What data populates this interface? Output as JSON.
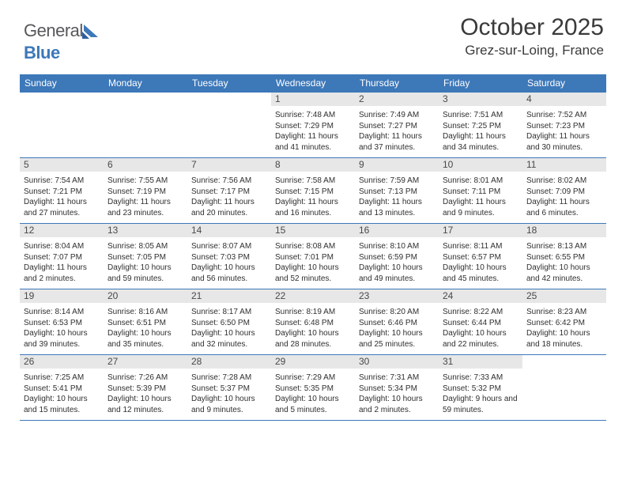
{
  "brand": {
    "general": "General",
    "blue": "Blue"
  },
  "title": "October 2025",
  "location": "Grez-sur-Loing, France",
  "weekday_header_bg": "#3d78b9",
  "weekdays": [
    "Sunday",
    "Monday",
    "Tuesday",
    "Wednesday",
    "Thursday",
    "Friday",
    "Saturday"
  ],
  "first_weekday_index": 3,
  "days": [
    {
      "n": 1,
      "sr": "7:48 AM",
      "ss": "7:29 PM",
      "dl": "11 hours and 41 minutes."
    },
    {
      "n": 2,
      "sr": "7:49 AM",
      "ss": "7:27 PM",
      "dl": "11 hours and 37 minutes."
    },
    {
      "n": 3,
      "sr": "7:51 AM",
      "ss": "7:25 PM",
      "dl": "11 hours and 34 minutes."
    },
    {
      "n": 4,
      "sr": "7:52 AM",
      "ss": "7:23 PM",
      "dl": "11 hours and 30 minutes."
    },
    {
      "n": 5,
      "sr": "7:54 AM",
      "ss": "7:21 PM",
      "dl": "11 hours and 27 minutes."
    },
    {
      "n": 6,
      "sr": "7:55 AM",
      "ss": "7:19 PM",
      "dl": "11 hours and 23 minutes."
    },
    {
      "n": 7,
      "sr": "7:56 AM",
      "ss": "7:17 PM",
      "dl": "11 hours and 20 minutes."
    },
    {
      "n": 8,
      "sr": "7:58 AM",
      "ss": "7:15 PM",
      "dl": "11 hours and 16 minutes."
    },
    {
      "n": 9,
      "sr": "7:59 AM",
      "ss": "7:13 PM",
      "dl": "11 hours and 13 minutes."
    },
    {
      "n": 10,
      "sr": "8:01 AM",
      "ss": "7:11 PM",
      "dl": "11 hours and 9 minutes."
    },
    {
      "n": 11,
      "sr": "8:02 AM",
      "ss": "7:09 PM",
      "dl": "11 hours and 6 minutes."
    },
    {
      "n": 12,
      "sr": "8:04 AM",
      "ss": "7:07 PM",
      "dl": "11 hours and 2 minutes."
    },
    {
      "n": 13,
      "sr": "8:05 AM",
      "ss": "7:05 PM",
      "dl": "10 hours and 59 minutes."
    },
    {
      "n": 14,
      "sr": "8:07 AM",
      "ss": "7:03 PM",
      "dl": "10 hours and 56 minutes."
    },
    {
      "n": 15,
      "sr": "8:08 AM",
      "ss": "7:01 PM",
      "dl": "10 hours and 52 minutes."
    },
    {
      "n": 16,
      "sr": "8:10 AM",
      "ss": "6:59 PM",
      "dl": "10 hours and 49 minutes."
    },
    {
      "n": 17,
      "sr": "8:11 AM",
      "ss": "6:57 PM",
      "dl": "10 hours and 45 minutes."
    },
    {
      "n": 18,
      "sr": "8:13 AM",
      "ss": "6:55 PM",
      "dl": "10 hours and 42 minutes."
    },
    {
      "n": 19,
      "sr": "8:14 AM",
      "ss": "6:53 PM",
      "dl": "10 hours and 39 minutes."
    },
    {
      "n": 20,
      "sr": "8:16 AM",
      "ss": "6:51 PM",
      "dl": "10 hours and 35 minutes."
    },
    {
      "n": 21,
      "sr": "8:17 AM",
      "ss": "6:50 PM",
      "dl": "10 hours and 32 minutes."
    },
    {
      "n": 22,
      "sr": "8:19 AM",
      "ss": "6:48 PM",
      "dl": "10 hours and 28 minutes."
    },
    {
      "n": 23,
      "sr": "8:20 AM",
      "ss": "6:46 PM",
      "dl": "10 hours and 25 minutes."
    },
    {
      "n": 24,
      "sr": "8:22 AM",
      "ss": "6:44 PM",
      "dl": "10 hours and 22 minutes."
    },
    {
      "n": 25,
      "sr": "8:23 AM",
      "ss": "6:42 PM",
      "dl": "10 hours and 18 minutes."
    },
    {
      "n": 26,
      "sr": "7:25 AM",
      "ss": "5:41 PM",
      "dl": "10 hours and 15 minutes."
    },
    {
      "n": 27,
      "sr": "7:26 AM",
      "ss": "5:39 PM",
      "dl": "10 hours and 12 minutes."
    },
    {
      "n": 28,
      "sr": "7:28 AM",
      "ss": "5:37 PM",
      "dl": "10 hours and 9 minutes."
    },
    {
      "n": 29,
      "sr": "7:29 AM",
      "ss": "5:35 PM",
      "dl": "10 hours and 5 minutes."
    },
    {
      "n": 30,
      "sr": "7:31 AM",
      "ss": "5:34 PM",
      "dl": "10 hours and 2 minutes."
    },
    {
      "n": 31,
      "sr": "7:33 AM",
      "ss": "5:32 PM",
      "dl": "9 hours and 59 minutes."
    }
  ],
  "labels": {
    "sunrise": "Sunrise:",
    "sunset": "Sunset:",
    "daylight": "Daylight:"
  }
}
